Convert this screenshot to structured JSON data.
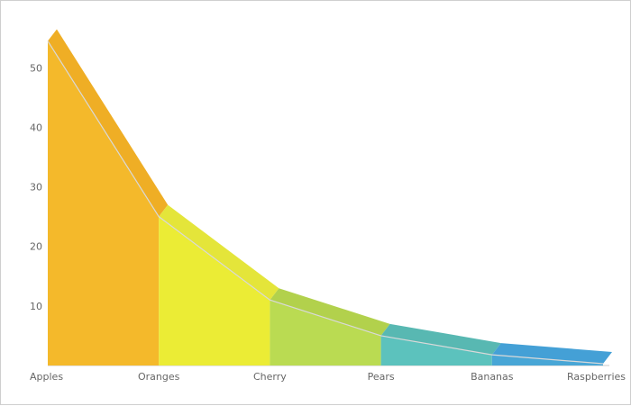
{
  "chart_data": {
    "type": "area",
    "categories": [
      "Apples",
      "Oranges",
      "Cherry",
      "Pears",
      "Bananas",
      "Raspberries"
    ],
    "values": [
      54.5,
      25,
      11,
      5,
      1.8,
      0.3
    ],
    "title": "",
    "xlabel": "",
    "ylabel": "",
    "ylim": [
      0,
      57
    ],
    "yticks": [
      "10",
      "20",
      "30",
      "40",
      "50"
    ],
    "three_d": true,
    "grid": false,
    "legend": "none",
    "colors": [
      "#F4B92B",
      "#EBEC35",
      "#BADB52",
      "#5CC2BD",
      "#48A6D6"
    ],
    "top_face_colors": [
      "#EFAE25",
      "#E4E53A",
      "#B2D14C",
      "#58B8B2",
      "#44A0D6"
    ],
    "edge_line_color": "#D9D9D9"
  }
}
